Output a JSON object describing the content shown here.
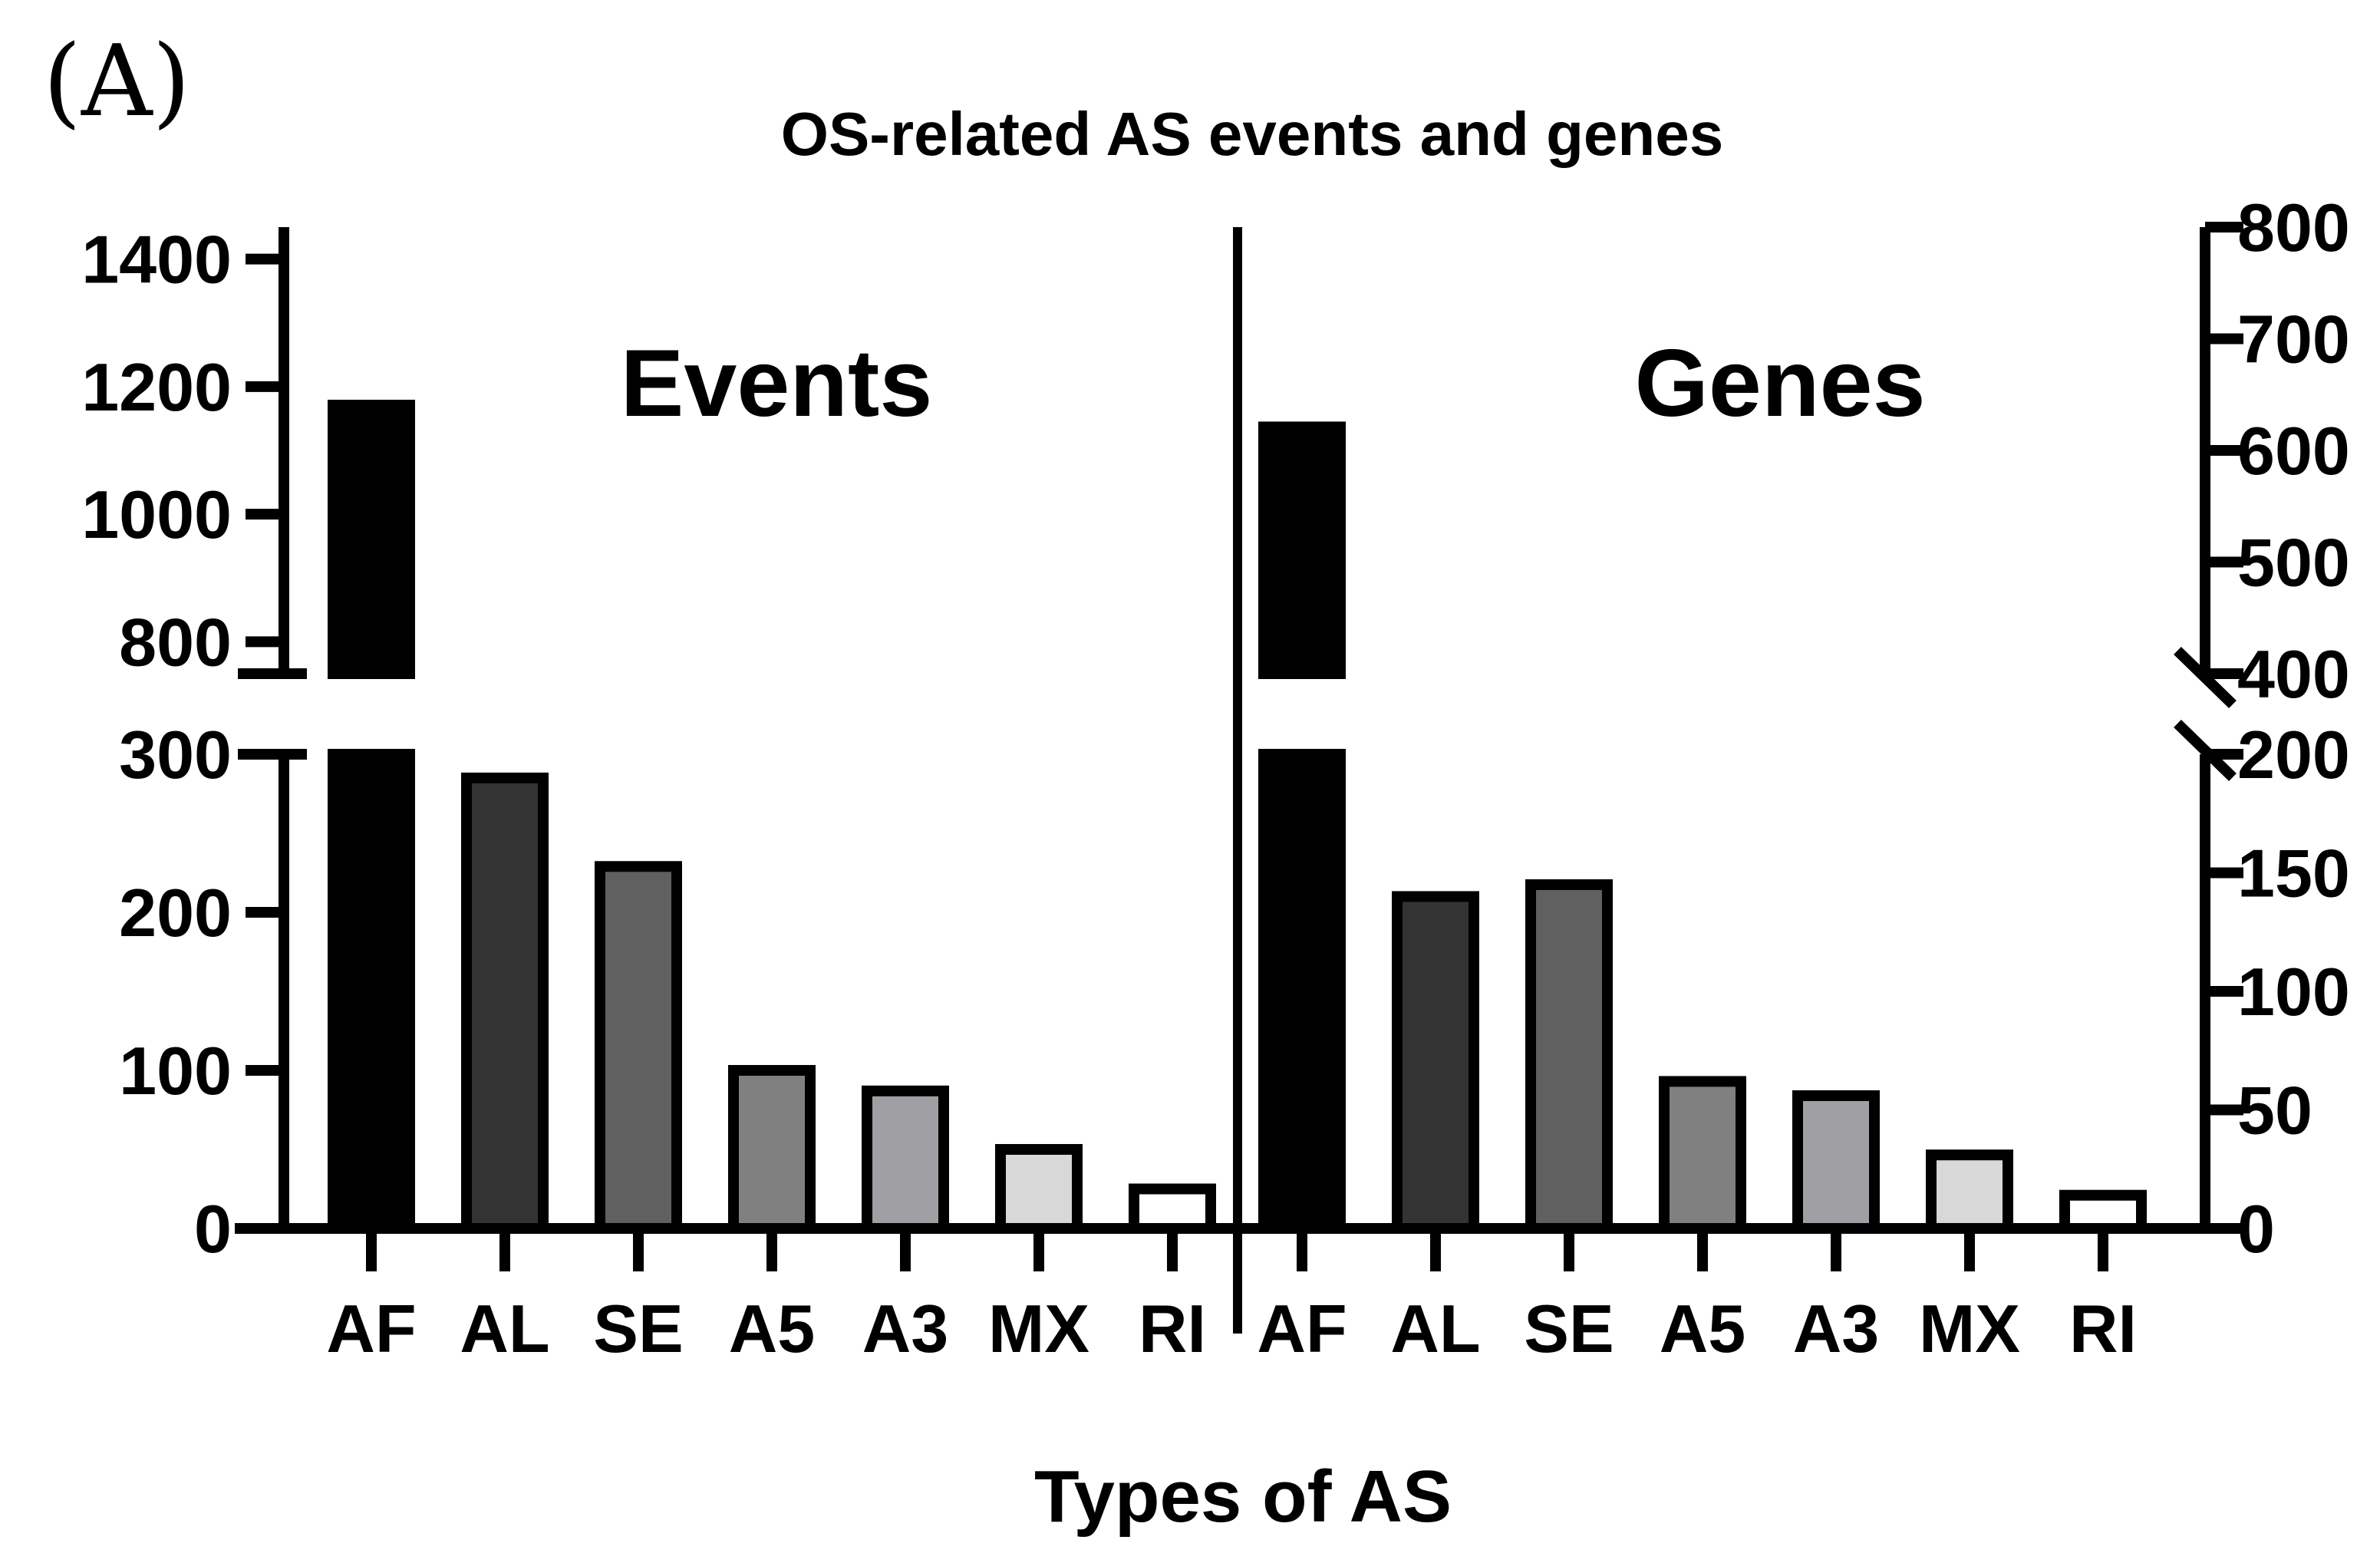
{
  "panel_label": "(A)",
  "chart_data": {
    "type": "bar",
    "title": "OS-related AS events and genes",
    "xlabel": "Types of AS",
    "panels": [
      {
        "name": "Events",
        "axis": "left",
        "categories": [
          "AF",
          "AL",
          "SE",
          "A5",
          "A3",
          "MX",
          "RI"
        ],
        "values": [
          1171,
          285,
          229,
          100,
          87,
          50,
          25
        ],
        "colors": [
          "#000000",
          "#333333",
          "#606060",
          "#808080",
          "#a0a0a4",
          "#d8d8d8",
          "#ffffff"
        ],
        "axis_segments": [
          {
            "range": [
              0,
              300
            ],
            "ticks": [
              0,
              100,
              200,
              300
            ]
          },
          {
            "range": [
              750,
              1450
            ],
            "ticks": [
              800,
              1000,
              1200,
              1400
            ]
          }
        ]
      },
      {
        "name": "Genes",
        "axis": "right",
        "categories": [
          "AF",
          "AL",
          "SE",
          "A5",
          "A3",
          "MX",
          "RI"
        ],
        "values": [
          621,
          140,
          145,
          62,
          56,
          31,
          14
        ],
        "colors": [
          "#000000",
          "#333333",
          "#606060",
          "#808080",
          "#a0a0a4",
          "#d8d8d8",
          "#ffffff"
        ],
        "axis_segments": [
          {
            "range": [
              0,
              200
            ],
            "ticks": [
              0,
              50,
              100,
              150,
              200
            ]
          },
          {
            "range": [
              400,
              800
            ],
            "ticks": [
              400,
              500,
              600,
              700,
              800
            ]
          }
        ]
      }
    ]
  }
}
